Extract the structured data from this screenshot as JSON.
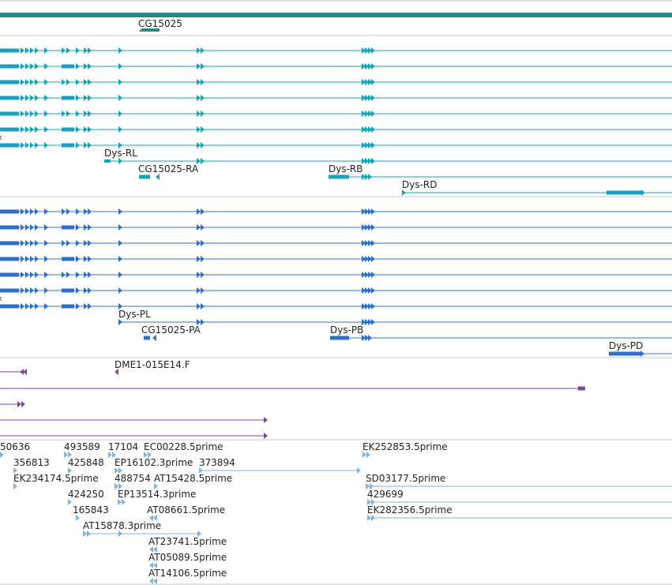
{
  "colors": {
    "gene": "#2a8a8a",
    "transcript": "#1aa0b8",
    "protein": "#2f6fc9",
    "cdna": "#7a4aa0",
    "est": "#7fb6db",
    "divider": "#c8c8c8"
  },
  "track_labels": {
    "gene_label": "CG15025",
    "rl": "Dys-RL",
    "cg_ra": "CG15025-RA",
    "rb": "Dys-RB",
    "rd": "Dys-RD",
    "pl": "Dys-PL",
    "cg_pa": "CG15025-PA",
    "pb": "Dys-PB",
    "pd": "Dys-PD",
    "dme": "DME1-015E14.F",
    "row_glyph_r": "‹",
    "row_glyph_p": "‹"
  },
  "est_labels": [
    "50636",
    "493589",
    "17104",
    "EC00228.5prime",
    "EK252853.5prime",
    "356813",
    "425848",
    "EP16102.3prime",
    "373894",
    "EK234174.5prime",
    "488754",
    "AT15428.5prime",
    "SD03177.5prime",
    "424250",
    "EP13514.3prime",
    "429699",
    "165843",
    "AT08661.5prime",
    "EK282356.5prime",
    "AT15878.3prime",
    "AT23741.5prime",
    "AT05089.5prime",
    "AT14106.5prime"
  ]
}
